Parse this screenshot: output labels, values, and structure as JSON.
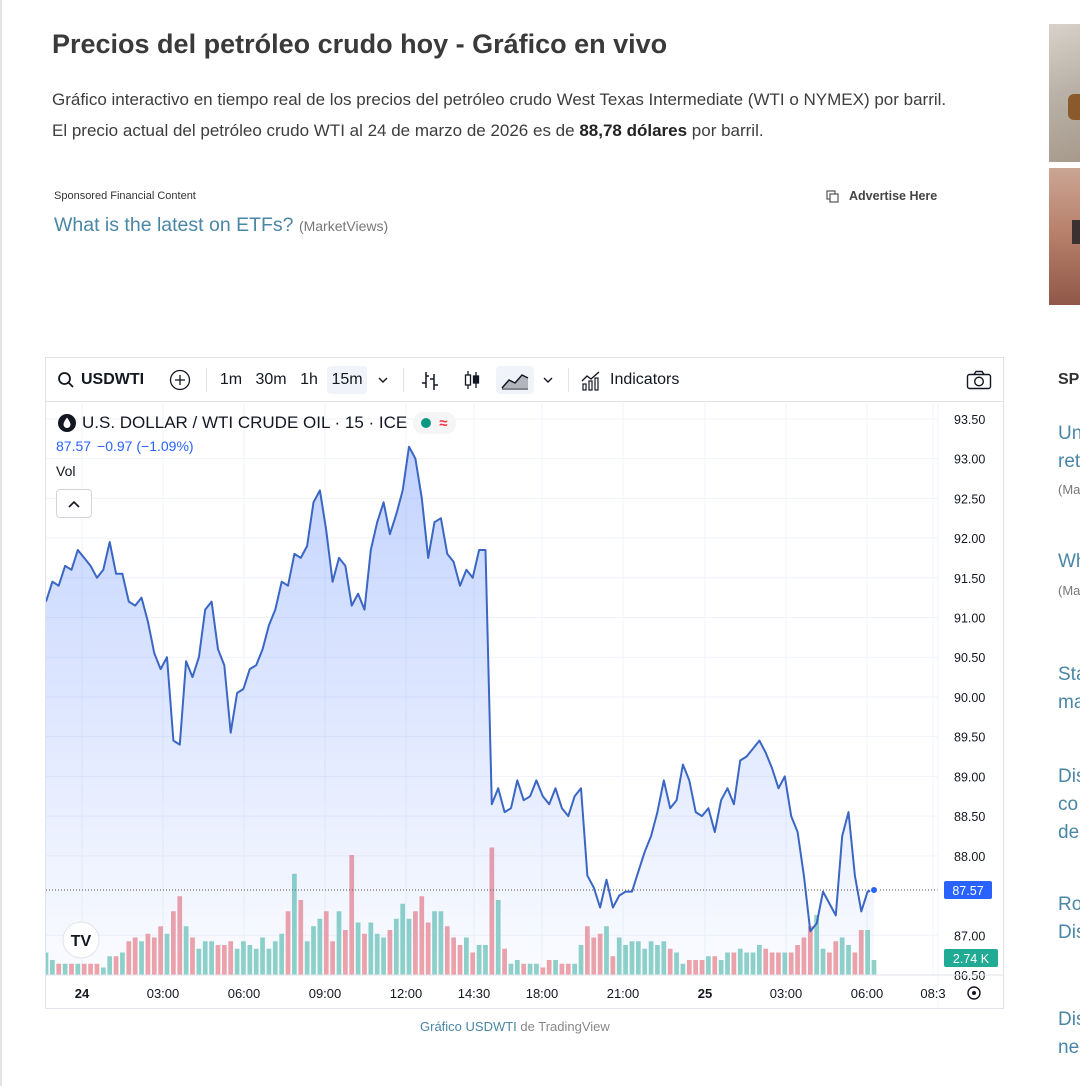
{
  "article": {
    "title": "Precios del petróleo crudo hoy - Gráfico en vivo",
    "intro_line1": "Gráfico interactivo en tiempo real de los precios del petróleo crudo West Texas Intermediate (WTI o NYMEX) por barril.",
    "intro_line2_pre": "El precio actual del petróleo crudo WTI al 24 de marzo de 2026 es de ",
    "intro_line2_bold": "88,78 dólares",
    "intro_line2_post": " por barril."
  },
  "sponsored": {
    "label": "Sponsored Financial Content",
    "link_text": "What is the latest on ETFs?",
    "source": "(MarketViews)",
    "advertise": "Advertise Here"
  },
  "sidebar": {
    "heading": "SP",
    "items": [
      {
        "line1": "Un",
        "line2": "ret",
        "source": "(Ma"
      },
      {
        "line1": "Wh",
        "line2": "",
        "source": "(Ma"
      },
      {
        "line1": "Sta",
        "line2": "ma",
        "source": ""
      },
      {
        "line1": "Dis",
        "line2": "co",
        "line3": "de",
        "source": ""
      },
      {
        "line1": "Ro",
        "line2": "Dis",
        "source": ""
      },
      {
        "line1": "Dis",
        "line2": "ne",
        "source": ""
      }
    ]
  },
  "toolbar": {
    "symbol": "USDWTI",
    "intervals": [
      "1m",
      "30m",
      "1h",
      "15m"
    ],
    "active_interval": "15m",
    "indicators_label": "Indicators"
  },
  "legend": {
    "title": "U.S. DOLLAR / WTI CRUDE OIL · 15 · ICE",
    "price": "87.57",
    "change": "−0.97 (−1.09%)",
    "vol_label": "Vol"
  },
  "chart_data": {
    "type": "line",
    "title": "U.S. DOLLAR / WTI CRUDE OIL · 15 · ICE",
    "xlabel": "",
    "ylabel": "",
    "ylim": [
      86.5,
      93.7
    ],
    "y_ticks": [
      "93.50",
      "93.00",
      "92.50",
      "92.00",
      "91.50",
      "91.00",
      "90.50",
      "90.00",
      "89.50",
      "89.00",
      "88.50",
      "88.00",
      "87.00",
      "86.50"
    ],
    "x_ticks": [
      "24",
      "03:00",
      "06:00",
      "09:00",
      "12:00",
      "14:30",
      "18:00",
      "21:00",
      "25",
      "03:00",
      "06:00",
      "08:3"
    ],
    "last_price_label": "87.57",
    "last_volume_label": "2.74 K",
    "grid": true,
    "series": [
      {
        "values": [
          91.2,
          91.45,
          91.4,
          91.65,
          91.6,
          91.85,
          91.75,
          91.65,
          91.5,
          91.6,
          91.95,
          91.55,
          91.55,
          91.2,
          91.15,
          91.25,
          90.95,
          90.55,
          90.35,
          90.5,
          89.45,
          89.4,
          90.45,
          90.25,
          90.5,
          91.1,
          91.2,
          90.6,
          90.4,
          89.55,
          90.05,
          90.1,
          90.35,
          90.4,
          90.6,
          90.9,
          91.1,
          91.45,
          91.4,
          91.8,
          91.75,
          91.9,
          92.45,
          92.6,
          92.1,
          91.45,
          91.75,
          91.65,
          91.15,
          91.3,
          91.1,
          91.85,
          92.2,
          92.45,
          92.05,
          92.3,
          92.6,
          93.15,
          93.0,
          92.5,
          91.75,
          92.2,
          92.25,
          91.8,
          91.7,
          91.4,
          91.6,
          91.5,
          91.85,
          91.85,
          88.65,
          88.85,
          88.55,
          88.6,
          88.95,
          88.7,
          88.75,
          88.95,
          88.75,
          88.65,
          88.85,
          88.6,
          88.5,
          88.75,
          88.85,
          87.75,
          87.6,
          87.35,
          87.7,
          87.35,
          87.5,
          87.55,
          87.55,
          87.8,
          88.05,
          88.25,
          88.55,
          88.95,
          88.6,
          88.7,
          89.15,
          88.95,
          88.55,
          88.5,
          88.6,
          88.3,
          88.7,
          88.85,
          88.65,
          89.2,
          89.25,
          89.35,
          89.45,
          89.3,
          89.1,
          88.85,
          89.0,
          88.5,
          88.3,
          87.75,
          87.05,
          87.15,
          87.55,
          87.4,
          87.25,
          88.25,
          88.55,
          87.75,
          87.3,
          87.55,
          87.57
        ]
      },
      {
        "name": "Vol",
        "values": [
          6,
          4,
          3,
          3,
          3,
          3,
          3,
          3,
          3,
          2,
          5,
          5,
          6,
          9,
          10,
          9,
          11,
          10,
          13,
          11,
          17,
          21,
          13,
          10,
          7,
          9,
          9,
          8,
          8,
          9,
          7,
          9,
          8,
          7,
          10,
          7,
          9,
          11,
          17,
          27,
          20,
          9,
          13,
          15,
          17,
          9,
          17,
          12,
          32,
          14,
          11,
          14,
          11,
          10,
          12,
          15,
          19,
          15,
          17,
          21,
          14,
          17,
          17,
          13,
          10,
          8,
          10,
          6,
          8,
          8,
          34,
          20,
          7,
          3,
          4,
          3,
          3,
          3,
          2,
          4,
          4,
          3,
          3,
          3,
          8,
          13,
          10,
          11,
          13,
          5,
          10,
          8,
          9,
          9,
          7,
          9,
          8,
          9,
          7,
          6,
          3,
          4,
          4,
          4,
          5,
          5,
          4,
          6,
          6,
          7,
          6,
          6,
          8,
          7,
          6,
          6,
          6,
          6,
          8,
          10,
          13,
          16,
          7,
          6,
          9,
          10,
          8,
          6,
          12,
          12,
          4
        ]
      }
    ]
  }
}
